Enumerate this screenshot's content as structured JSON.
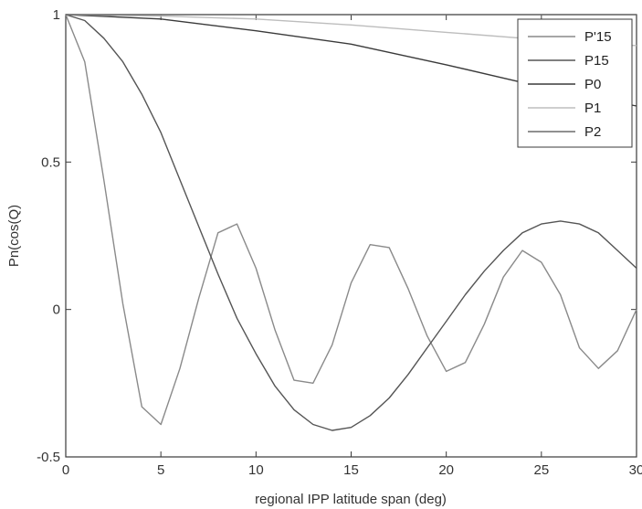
{
  "chart_data": {
    "type": "line",
    "title": "",
    "xlabel": "regional IPP latitude span (deg)",
    "ylabel": "Pn(cos(Q)",
    "xlim": [
      0,
      30
    ],
    "ylim": [
      -0.5,
      1
    ],
    "xticks": [
      0,
      5,
      10,
      15,
      20,
      25,
      30
    ],
    "xtick_labels": [
      "0",
      "5",
      "10",
      "15",
      "20",
      "25",
      "30"
    ],
    "yticks": [
      -0.5,
      0,
      0.5,
      1
    ],
    "ytick_labels": [
      "-0.5",
      "0",
      "0.5",
      "1"
    ],
    "grid": false,
    "legend_position": "top-right",
    "series": [
      {
        "name": "P'15",
        "color": "#8a8a8a",
        "x": [
          0,
          1,
          2,
          3,
          4,
          5,
          6,
          7,
          8,
          9,
          10,
          11,
          12,
          13,
          14,
          15,
          16,
          17,
          18,
          19,
          20,
          21,
          22,
          23,
          24,
          25,
          26,
          27,
          28,
          29,
          30
        ],
        "y": [
          1,
          0.84,
          0.44,
          0.02,
          -0.33,
          -0.39,
          -0.2,
          0.04,
          0.26,
          0.29,
          0.14,
          -0.07,
          -0.24,
          -0.25,
          -0.12,
          0.09,
          0.22,
          0.21,
          0.07,
          -0.09,
          -0.21,
          -0.18,
          -0.05,
          0.11,
          0.2,
          0.16,
          0.05,
          -0.13,
          -0.2,
          -0.14,
          0.0
        ]
      },
      {
        "name": "P15",
        "color": "#555555",
        "x": [
          0,
          1,
          2,
          3,
          4,
          5,
          6,
          7,
          8,
          9,
          10,
          11,
          12,
          13,
          14,
          15,
          16,
          17,
          18,
          19,
          20,
          21,
          22,
          23,
          24,
          25,
          26,
          27,
          28,
          29,
          30
        ],
        "y": [
          1,
          0.98,
          0.92,
          0.84,
          0.73,
          0.6,
          0.44,
          0.28,
          0.12,
          -0.03,
          -0.15,
          -0.26,
          -0.34,
          -0.39,
          -0.41,
          -0.4,
          -0.36,
          -0.3,
          -0.22,
          -0.13,
          -0.04,
          0.05,
          0.13,
          0.2,
          0.26,
          0.29,
          0.3,
          0.29,
          0.26,
          0.2,
          0.14
        ]
      },
      {
        "name": "P0",
        "color": "#3a3a3a",
        "x": [
          0,
          5,
          10,
          15,
          20,
          23,
          26,
          30
        ],
        "y": [
          1,
          0.985,
          0.945,
          0.9,
          0.83,
          0.785,
          0.74,
          0.69
        ]
      },
      {
        "name": "P1",
        "color": "#bdbdbd",
        "x": [
          0,
          5,
          10,
          15,
          20,
          25,
          30
        ],
        "y": [
          1,
          0.995,
          0.985,
          0.965,
          0.94,
          0.915,
          0.895
        ]
      },
      {
        "name": "P2",
        "color": "#6b6b6b",
        "x": [
          0,
          30
        ],
        "y": [
          1,
          1
        ]
      }
    ]
  }
}
